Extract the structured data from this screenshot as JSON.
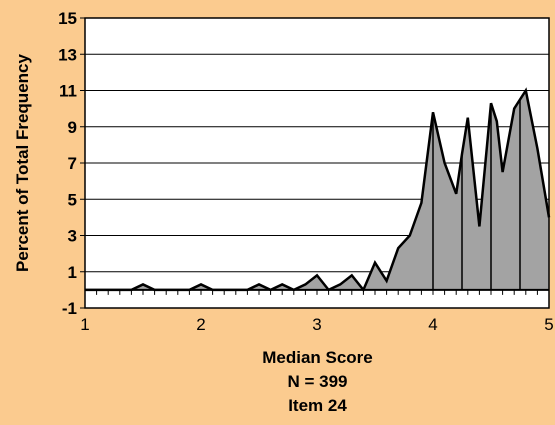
{
  "chart_data": {
    "type": "area",
    "xlabel": "Median Score",
    "ylabel": "Percent of Total Frequency",
    "caption_lines": [
      "Median Score",
      "N = 399",
      "Item 24"
    ],
    "xlim": [
      1,
      5
    ],
    "ylim": [
      -1,
      15
    ],
    "xticks": [
      "1",
      "2",
      "3",
      "4",
      "5"
    ],
    "yticks": [
      "-1",
      "1",
      "3",
      "5",
      "7",
      "9",
      "11",
      "13",
      "15"
    ],
    "grid": "horizontal",
    "baseline": 0,
    "x": [
      1.0,
      1.25,
      1.4,
      1.5,
      1.6,
      1.75,
      1.9,
      2.0,
      2.1,
      2.25,
      2.4,
      2.5,
      2.6,
      2.7,
      2.8,
      2.9,
      3.0,
      3.1,
      3.2,
      3.3,
      3.4,
      3.5,
      3.6,
      3.7,
      3.8,
      3.9,
      4.0,
      4.1,
      4.2,
      4.25,
      4.3,
      4.4,
      4.5,
      4.55,
      4.6,
      4.7,
      4.8,
      4.9,
      5.0
    ],
    "values": [
      0,
      0,
      0,
      0.3,
      0,
      0,
      0,
      0.3,
      0,
      0,
      0,
      0.3,
      0,
      0.3,
      0,
      0.3,
      0.8,
      0,
      0.3,
      0.8,
      0,
      1.5,
      0.5,
      2.3,
      3.0,
      4.8,
      9.8,
      7.0,
      5.3,
      7.5,
      9.5,
      3.5,
      10.3,
      9.3,
      6.5,
      10.0,
      11.0,
      7.8,
      4.0
    ],
    "dividers": [
      4.0,
      4.25,
      4.5,
      4.75
    ],
    "colors": {
      "background": "#FBCB8F",
      "plot_background": "#FFFFFF",
      "area_fill": "#A3A3A3",
      "line": "#000000"
    }
  }
}
